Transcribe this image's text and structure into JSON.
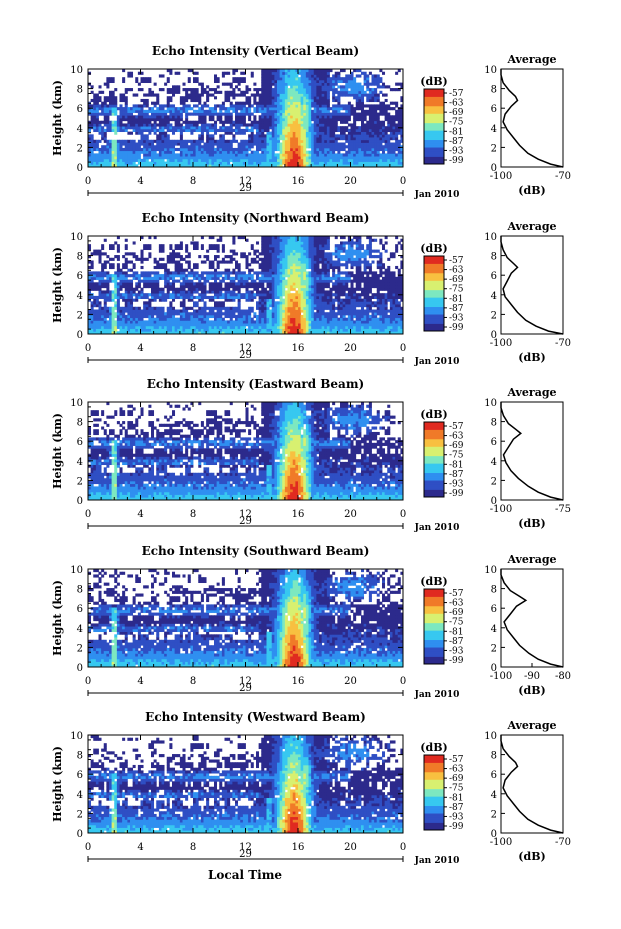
{
  "figure": {
    "date_label": "Jan 2010",
    "xlabel_bottom": "Local Time",
    "day_label": "29"
  },
  "colors": {
    "scale": [
      "#2c2a8c",
      "#2f4fc4",
      "#2f8ff0",
      "#37c8f0",
      "#7de8c0",
      "#d8f070",
      "#f8c040",
      "#f07a28",
      "#e02a20"
    ]
  },
  "chart_data": [
    {
      "type": "heatmap",
      "title": "Echo Intensity (Vertical Beam)",
      "ylabel": "Height (km)",
      "xlim": [
        0,
        24
      ],
      "ylim": [
        0,
        10
      ],
      "x_ticks": [
        "0",
        "4",
        "8",
        "12",
        "16",
        "20",
        "0"
      ],
      "y_ticks": [
        "0",
        "2",
        "4",
        "6",
        "8",
        "10"
      ],
      "colorbar": {
        "label": "(dB)",
        "ticks": [
          "-57",
          "-63",
          "-69",
          "-75",
          "-81",
          "-87",
          "-93",
          "-99"
        ]
      },
      "profile": {
        "title": "Average",
        "xlabel": "(dB)",
        "xlim": [
          -100,
          -70
        ],
        "x_ticks": [
          "-100",
          "-70"
        ],
        "points": [
          [
            -70,
            0
          ],
          [
            -76,
            0.3
          ],
          [
            -82,
            0.8
          ],
          [
            -87,
            1.4
          ],
          [
            -91,
            2.2
          ],
          [
            -94,
            3.0
          ],
          [
            -97,
            3.8
          ],
          [
            -99,
            4.6
          ],
          [
            -98,
            5.4
          ],
          [
            -95,
            6.2
          ],
          [
            -92,
            6.8
          ],
          [
            -93,
            7.2
          ],
          [
            -96,
            7.8
          ],
          [
            -99,
            8.6
          ],
          [
            -100,
            9.4
          ],
          [
            -100,
            10
          ]
        ]
      }
    },
    {
      "type": "heatmap",
      "title": "Echo Intensity (Northward Beam)",
      "ylabel": "Height (km)",
      "xlim": [
        0,
        24
      ],
      "ylim": [
        0,
        10
      ],
      "x_ticks": [
        "0",
        "4",
        "8",
        "12",
        "16",
        "20",
        "0"
      ],
      "y_ticks": [
        "0",
        "2",
        "4",
        "6",
        "8",
        "10"
      ],
      "colorbar": {
        "label": "(dB)",
        "ticks": [
          "-57",
          "-63",
          "-69",
          "-75",
          "-81",
          "-87",
          "-93",
          "-99"
        ]
      },
      "profile": {
        "title": "Average",
        "xlabel": "(dB)",
        "xlim": [
          -100,
          -70
        ],
        "x_ticks": [
          "-100",
          "-70"
        ],
        "points": [
          [
            -70,
            0
          ],
          [
            -77,
            0.3
          ],
          [
            -83,
            0.8
          ],
          [
            -88,
            1.4
          ],
          [
            -92,
            2.2
          ],
          [
            -95,
            3.0
          ],
          [
            -98,
            3.8
          ],
          [
            -99,
            4.6
          ],
          [
            -97,
            5.4
          ],
          [
            -95,
            6.2
          ],
          [
            -92,
            6.8
          ],
          [
            -94,
            7.2
          ],
          [
            -97,
            7.8
          ],
          [
            -99,
            8.6
          ],
          [
            -100,
            9.4
          ],
          [
            -100,
            10
          ]
        ]
      }
    },
    {
      "type": "heatmap",
      "title": "Echo Intensity (Eastward Beam)",
      "ylabel": "Height (km)",
      "xlim": [
        0,
        24
      ],
      "ylim": [
        0,
        10
      ],
      "x_ticks": [
        "0",
        "4",
        "8",
        "12",
        "16",
        "20",
        "0"
      ],
      "y_ticks": [
        "0",
        "2",
        "4",
        "6",
        "8",
        "10"
      ],
      "colorbar": {
        "label": "(dB)",
        "ticks": [
          "-57",
          "-63",
          "-69",
          "-75",
          "-81",
          "-87",
          "-93",
          "-99"
        ]
      },
      "profile": {
        "title": "Average",
        "xlabel": "(dB)",
        "xlim": [
          -100,
          -75
        ],
        "x_ticks": [
          "-100",
          "-75"
        ],
        "points": [
          [
            -75,
            0
          ],
          [
            -80,
            0.3
          ],
          [
            -85,
            0.8
          ],
          [
            -89,
            1.4
          ],
          [
            -93,
            2.2
          ],
          [
            -96,
            3.0
          ],
          [
            -98,
            3.8
          ],
          [
            -99,
            4.6
          ],
          [
            -97,
            5.4
          ],
          [
            -95,
            6.2
          ],
          [
            -92,
            6.8
          ],
          [
            -94,
            7.2
          ],
          [
            -97,
            7.8
          ],
          [
            -99,
            8.6
          ],
          [
            -100,
            9.4
          ],
          [
            -100,
            10
          ]
        ]
      }
    },
    {
      "type": "heatmap",
      "title": "Echo Intensity (Southward Beam)",
      "ylabel": "Height (km)",
      "xlim": [
        0,
        24
      ],
      "ylim": [
        0,
        10
      ],
      "x_ticks": [
        "0",
        "4",
        "8",
        "12",
        "16",
        "20",
        "0"
      ],
      "y_ticks": [
        "0",
        "2",
        "4",
        "6",
        "8",
        "10"
      ],
      "colorbar": {
        "label": "(dB)",
        "ticks": [
          "-57",
          "-63",
          "-69",
          "-75",
          "-81",
          "-87",
          "-93",
          "-99"
        ]
      },
      "profile": {
        "title": "Average",
        "xlabel": "(dB)",
        "xlim": [
          -100,
          -80
        ],
        "x_ticks": [
          "-100",
          "-90",
          "-80"
        ],
        "points": [
          [
            -80,
            0
          ],
          [
            -84,
            0.3
          ],
          [
            -88,
            0.8
          ],
          [
            -91,
            1.4
          ],
          [
            -94,
            2.2
          ],
          [
            -96,
            3.0
          ],
          [
            -98,
            3.8
          ],
          [
            -99,
            4.6
          ],
          [
            -97,
            5.4
          ],
          [
            -95,
            6.2
          ],
          [
            -92,
            6.8
          ],
          [
            -94,
            7.2
          ],
          [
            -97,
            7.8
          ],
          [
            -99,
            8.6
          ],
          [
            -100,
            9.4
          ],
          [
            -100,
            10
          ]
        ]
      }
    },
    {
      "type": "heatmap",
      "title": "Echo Intensity (Westward Beam)",
      "ylabel": "Height (km)",
      "xlim": [
        0,
        24
      ],
      "ylim": [
        0,
        10
      ],
      "x_ticks": [
        "0",
        "4",
        "8",
        "12",
        "16",
        "20",
        "0"
      ],
      "y_ticks": [
        "0",
        "2",
        "4",
        "6",
        "8",
        "10"
      ],
      "colorbar": {
        "label": "(dB)",
        "ticks": [
          "-57",
          "-63",
          "-69",
          "-75",
          "-81",
          "-87",
          "-93",
          "-99"
        ]
      },
      "profile": {
        "title": "Average",
        "xlabel": "(dB)",
        "xlim": [
          -100,
          -70
        ],
        "x_ticks": [
          "-100",
          "-70"
        ],
        "points": [
          [
            -70,
            0
          ],
          [
            -76,
            0.3
          ],
          [
            -82,
            0.8
          ],
          [
            -87,
            1.4
          ],
          [
            -91,
            2.2
          ],
          [
            -94,
            3.0
          ],
          [
            -97,
            3.8
          ],
          [
            -99,
            4.6
          ],
          [
            -98,
            5.4
          ],
          [
            -95,
            6.2
          ],
          [
            -92,
            6.8
          ],
          [
            -93,
            7.2
          ],
          [
            -96,
            7.8
          ],
          [
            -99,
            8.6
          ],
          [
            -100,
            9.4
          ],
          [
            -100,
            10
          ]
        ]
      }
    }
  ]
}
